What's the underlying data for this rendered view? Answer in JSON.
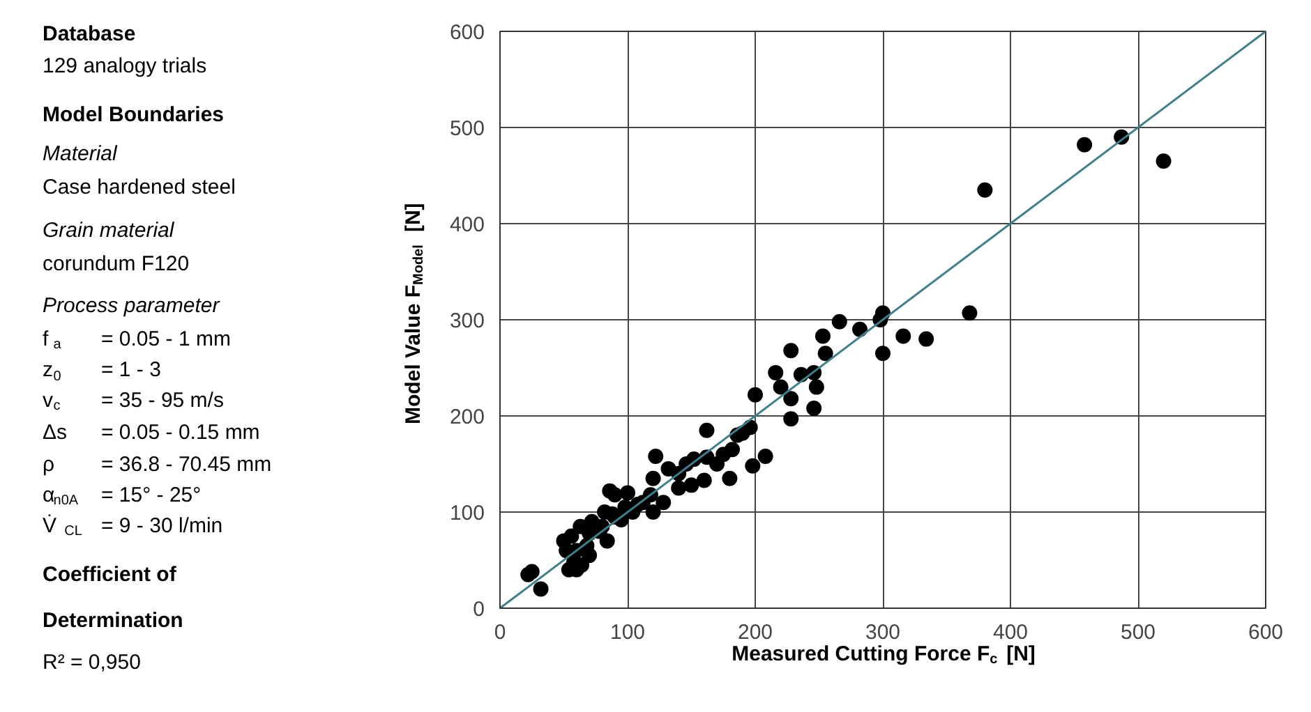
{
  "chart_data": {
    "type": "scatter",
    "xlabel": "Measured Cutting Force F$_{c}$ [N]",
    "ylabel": "Model Value F$_{Model}$ [N]",
    "xlim": [
      0,
      600
    ],
    "ylim": [
      0,
      600
    ],
    "xticks": [
      0,
      100,
      200,
      300,
      400,
      500,
      600
    ],
    "yticks": [
      0,
      100,
      200,
      300,
      400,
      500,
      600
    ],
    "grid": true,
    "series": [
      {
        "marker": "circle",
        "color": "#000000",
        "x": [
          380,
          458,
          487,
          520,
          368,
          300,
          298,
          300,
          316,
          334,
          282,
          266,
          253,
          255,
          246,
          248,
          246,
          228,
          228,
          228,
          236,
          216,
          220,
          200,
          196,
          198,
          208,
          186,
          182,
          175,
          180,
          162,
          162,
          160,
          152,
          146,
          140,
          140,
          132,
          122,
          120,
          118,
          120,
          112,
          108,
          100,
          98,
          95,
          90,
          88,
          86,
          82,
          80,
          78,
          72,
          70,
          68,
          63,
          60,
          58,
          56,
          54,
          60,
          64,
          52,
          50,
          25,
          22,
          32,
          70,
          84,
          90,
          104,
          128,
          150,
          170,
          190
        ],
        "values": [
          435,
          482,
          490,
          465,
          307,
          307,
          300,
          265,
          283,
          280,
          290,
          298,
          283,
          265,
          245,
          230,
          208,
          268,
          218,
          197,
          243,
          245,
          230,
          222,
          188,
          148,
          158,
          180,
          165,
          160,
          135,
          185,
          157,
          133,
          155,
          150,
          140,
          125,
          145,
          158,
          135,
          118,
          100,
          110,
          108,
          120,
          105,
          92,
          118,
          98,
          122,
          100,
          85,
          80,
          90,
          78,
          65,
          85,
          60,
          48,
          75,
          40,
          40,
          45,
          60,
          70,
          38,
          35,
          20,
          55,
          70,
          95,
          100,
          110,
          128,
          150,
          182
        ]
      },
      {
        "type": "line",
        "color": "#3f7f8c",
        "x": [
          0,
          600
        ],
        "values": [
          0,
          600
        ]
      }
    ],
    "annotations": [
      "Database",
      "129 analogy trials",
      "Model Boundaries",
      "Material",
      "Case hardened steel",
      "Grain material",
      "corundum F120",
      "Process parameter",
      "f$_{a}$ = 0.05 - 1 mm",
      "z$_{0}$ = 1 - 3",
      "v$_{c}$ = 35 - 95 m/s",
      "Δs = 0.05 - 0.15 mm",
      "ρ = 36.8 - 70.45 mm",
      "α$_{n0A}$ = 15° - 25°",
      "V̇$_{CL}$ = 9 - 30 l/min",
      "Coefficient of",
      "Determination",
      "R² = 0,950"
    ]
  }
}
